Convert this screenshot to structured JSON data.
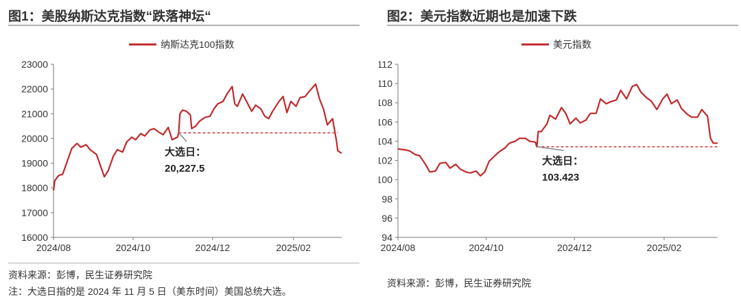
{
  "panels": {
    "left": {
      "title": "图1：美股纳斯达克指数“跌落神坛“",
      "source": "资料来源：彭博，民生证券研究院",
      "note": "注：大选日指的是 2024 年 11 月 5 日（美东时间）美国总统大选。",
      "annotation_label": "大选日：",
      "annotation_value": "20,227.5"
    },
    "right": {
      "title": "图2：美元指数近期也是加速下跌",
      "source": "资料来源：彭博，民生证券研究院",
      "annotation_label": "大选日：",
      "annotation_value": "103.423"
    }
  },
  "colors": {
    "line": "#c0282b",
    "reference": "#c0282b",
    "axis": "#777777",
    "callout": "#888888"
  },
  "chart_data": [
    {
      "type": "line",
      "title": "",
      "xlabel": "",
      "ylabel": "",
      "legend_position": "top-center",
      "grid": false,
      "xlim": [
        "2024-08-01",
        "2025-03-10"
      ],
      "ylim": [
        16000,
        23000
      ],
      "yticks": [
        "16000",
        "17000",
        "18000",
        "19000",
        "20000",
        "21000",
        "22000",
        "23000"
      ],
      "xticks": [
        {
          "date": "2024-08-01",
          "label": "2024/08"
        },
        {
          "date": "2024-10-01",
          "label": "2024/10"
        },
        {
          "date": "2024-12-01",
          "label": "2024/12"
        },
        {
          "date": "2025-02-01",
          "label": "2025/02"
        }
      ],
      "reference": {
        "date": "2024-11-05",
        "value": 20227.5,
        "end_date": "2025-03-07"
      },
      "series": [
        {
          "name": "纳斯达克100指数",
          "points": [
            [
              "2024-08-01",
              17900
            ],
            [
              "2024-08-02",
              18300
            ],
            [
              "2024-08-05",
              18500
            ],
            [
              "2024-08-08",
              18550
            ],
            [
              "2024-08-12",
              19150
            ],
            [
              "2024-08-15",
              19600
            ],
            [
              "2024-08-19",
              19800
            ],
            [
              "2024-08-22",
              19650
            ],
            [
              "2024-08-26",
              19750
            ],
            [
              "2024-08-29",
              19550
            ],
            [
              "2024-09-03",
              19350
            ],
            [
              "2024-09-06",
              18900
            ],
            [
              "2024-09-09",
              18450
            ],
            [
              "2024-09-12",
              18700
            ],
            [
              "2024-09-16",
              19300
            ],
            [
              "2024-09-19",
              19550
            ],
            [
              "2024-09-23",
              19450
            ],
            [
              "2024-09-26",
              19850
            ],
            [
              "2024-09-30",
              20050
            ],
            [
              "2024-10-03",
              19950
            ],
            [
              "2024-10-07",
              20200
            ],
            [
              "2024-10-10",
              20100
            ],
            [
              "2024-10-14",
              20350
            ],
            [
              "2024-10-17",
              20400
            ],
            [
              "2024-10-21",
              20250
            ],
            [
              "2024-10-24",
              20150
            ],
            [
              "2024-10-28",
              20450
            ],
            [
              "2024-10-31",
              19950
            ],
            [
              "2024-11-04",
              20050
            ],
            [
              "2024-11-05",
              20227.5
            ],
            [
              "2024-11-06",
              21000
            ],
            [
              "2024-11-08",
              21150
            ],
            [
              "2024-11-11",
              21100
            ],
            [
              "2024-11-14",
              20950
            ],
            [
              "2024-11-15",
              20400
            ],
            [
              "2024-11-18",
              20500
            ],
            [
              "2024-11-21",
              20700
            ],
            [
              "2024-11-25",
              20850
            ],
            [
              "2024-11-29",
              20900
            ],
            [
              "2024-12-02",
              21200
            ],
            [
              "2024-12-05",
              21400
            ],
            [
              "2024-12-09",
              21500
            ],
            [
              "2024-12-12",
              21800
            ],
            [
              "2024-12-16",
              22100
            ],
            [
              "2024-12-18",
              21400
            ],
            [
              "2024-12-20",
              21300
            ],
            [
              "2024-12-24",
              21800
            ],
            [
              "2024-12-27",
              21500
            ],
            [
              "2024-12-31",
              21100
            ],
            [
              "2025-01-03",
              21350
            ],
            [
              "2025-01-07",
              21200
            ],
            [
              "2025-01-10",
              20900
            ],
            [
              "2025-01-13",
              20800
            ],
            [
              "2025-01-16",
              21100
            ],
            [
              "2025-01-21",
              21500
            ],
            [
              "2025-01-24",
              21700
            ],
            [
              "2025-01-27",
              21050
            ],
            [
              "2025-01-30",
              21500
            ],
            [
              "2025-02-03",
              21300
            ],
            [
              "2025-02-06",
              21650
            ],
            [
              "2025-02-10",
              21700
            ],
            [
              "2025-02-13",
              21900
            ],
            [
              "2025-02-18",
              22200
            ],
            [
              "2025-02-21",
              21600
            ],
            [
              "2025-02-24",
              21200
            ],
            [
              "2025-02-27",
              20550
            ],
            [
              "2025-03-03",
              20800
            ],
            [
              "2025-03-05",
              20200
            ],
            [
              "2025-03-06",
              19900
            ],
            [
              "2025-03-07",
              19500
            ],
            [
              "2025-03-10",
              19400
            ]
          ]
        }
      ]
    },
    {
      "type": "line",
      "title": "",
      "xlabel": "",
      "ylabel": "",
      "legend_position": "top-center",
      "grid": false,
      "xlim": [
        "2024-08-01",
        "2025-03-10"
      ],
      "ylim": [
        94,
        112
      ],
      "yticks": [
        "94",
        "96",
        "98",
        "100",
        "102",
        "104",
        "106",
        "108",
        "110",
        "112"
      ],
      "xticks": [
        {
          "date": "2024-08-01",
          "label": "2024/08"
        },
        {
          "date": "2024-10-01",
          "label": "2024/10"
        },
        {
          "date": "2024-12-01",
          "label": "2024/12"
        },
        {
          "date": "2025-02-01",
          "label": "2025/02"
        }
      ],
      "reference": {
        "date": "2024-11-05",
        "value": 103.423,
        "end_date": "2025-03-10"
      },
      "series": [
        {
          "name": "美元指数",
          "points": [
            [
              "2024-08-01",
              103.2
            ],
            [
              "2024-08-06",
              103.1
            ],
            [
              "2024-08-09",
              103.0
            ],
            [
              "2024-08-13",
              102.6
            ],
            [
              "2024-08-16",
              102.5
            ],
            [
              "2024-08-20",
              101.6
            ],
            [
              "2024-08-23",
              100.8
            ],
            [
              "2024-08-27",
              100.9
            ],
            [
              "2024-08-30",
              101.7
            ],
            [
              "2024-09-03",
              101.8
            ],
            [
              "2024-09-06",
              101.2
            ],
            [
              "2024-09-10",
              101.6
            ],
            [
              "2024-09-13",
              101.1
            ],
            [
              "2024-09-17",
              100.8
            ],
            [
              "2024-09-20",
              100.7
            ],
            [
              "2024-09-24",
              100.9
            ],
            [
              "2024-09-27",
              100.4
            ],
            [
              "2024-09-30",
              100.8
            ],
            [
              "2024-10-03",
              101.9
            ],
            [
              "2024-10-07",
              102.5
            ],
            [
              "2024-10-10",
              102.9
            ],
            [
              "2024-10-14",
              103.3
            ],
            [
              "2024-10-17",
              103.8
            ],
            [
              "2024-10-21",
              104.0
            ],
            [
              "2024-10-24",
              104.3
            ],
            [
              "2024-10-28",
              104.3
            ],
            [
              "2024-10-31",
              104.0
            ],
            [
              "2024-11-04",
              103.9
            ],
            [
              "2024-11-05",
              103.423
            ],
            [
              "2024-11-06",
              105.0
            ],
            [
              "2024-11-08",
              105.0
            ],
            [
              "2024-11-12",
              105.8
            ],
            [
              "2024-11-14",
              106.7
            ],
            [
              "2024-11-18",
              106.3
            ],
            [
              "2024-11-22",
              107.5
            ],
            [
              "2024-11-25",
              106.9
            ],
            [
              "2024-11-28",
              105.8
            ],
            [
              "2024-12-02",
              106.4
            ],
            [
              "2024-12-05",
              105.9
            ],
            [
              "2024-12-09",
              106.2
            ],
            [
              "2024-12-12",
              106.9
            ],
            [
              "2024-12-16",
              106.9
            ],
            [
              "2024-12-19",
              108.4
            ],
            [
              "2024-12-23",
              107.9
            ],
            [
              "2024-12-26",
              108.1
            ],
            [
              "2024-12-30",
              108.3
            ],
            [
              "2025-01-02",
              109.3
            ],
            [
              "2025-01-06",
              108.4
            ],
            [
              "2025-01-10",
              109.7
            ],
            [
              "2025-01-13",
              109.9
            ],
            [
              "2025-01-16",
              109.1
            ],
            [
              "2025-01-20",
              108.5
            ],
            [
              "2025-01-23",
              108.2
            ],
            [
              "2025-01-27",
              107.3
            ],
            [
              "2025-01-31",
              108.4
            ],
            [
              "2025-02-03",
              108.9
            ],
            [
              "2025-02-06",
              107.9
            ],
            [
              "2025-02-10",
              108.3
            ],
            [
              "2025-02-13",
              107.4
            ],
            [
              "2025-02-17",
              106.8
            ],
            [
              "2025-02-20",
              106.5
            ],
            [
              "2025-02-24",
              106.5
            ],
            [
              "2025-02-27",
              107.3
            ],
            [
              "2025-03-03",
              106.6
            ],
            [
              "2025-03-05",
              104.3
            ],
            [
              "2025-03-07",
              103.8
            ],
            [
              "2025-03-10",
              103.8
            ]
          ]
        }
      ]
    }
  ]
}
